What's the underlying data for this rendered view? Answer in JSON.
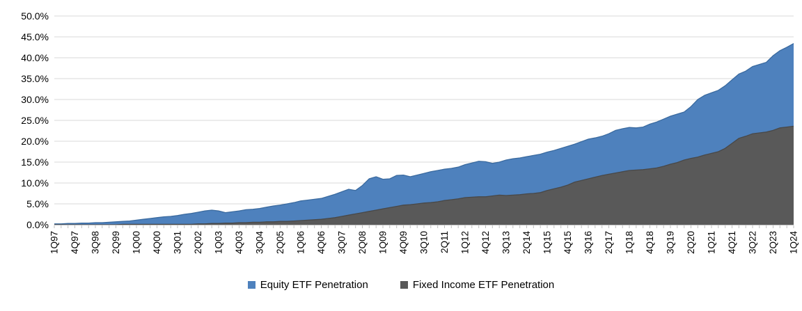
{
  "chart_data": {
    "type": "area",
    "title": "",
    "xlabel": "",
    "ylabel": "",
    "ylim": [
      0,
      50
    ],
    "y_tick_step": 5,
    "y_tick_labels": [
      "0.0%",
      "5.0%",
      "10.0%",
      "15.0%",
      "20.0%",
      "25.0%",
      "30.0%",
      "35.0%",
      "40.0%",
      "45.0%",
      "50.0%"
    ],
    "x_tick_interval": 3,
    "grid": true,
    "legend_position": "bottom",
    "overlapping_areas": true,
    "x": [
      "1Q97",
      "2Q97",
      "3Q97",
      "4Q97",
      "1Q98",
      "2Q98",
      "3Q98",
      "4Q98",
      "1Q99",
      "2Q99",
      "3Q99",
      "4Q99",
      "1Q00",
      "2Q00",
      "3Q00",
      "4Q00",
      "1Q01",
      "2Q01",
      "3Q01",
      "4Q01",
      "1Q02",
      "2Q02",
      "3Q02",
      "4Q02",
      "1Q03",
      "2Q03",
      "3Q03",
      "4Q03",
      "1Q04",
      "2Q04",
      "3Q04",
      "4Q04",
      "1Q05",
      "2Q05",
      "3Q05",
      "4Q05",
      "1Q06",
      "2Q06",
      "3Q06",
      "4Q06",
      "1Q07",
      "2Q07",
      "3Q07",
      "4Q07",
      "1Q08",
      "2Q08",
      "3Q08",
      "4Q08",
      "1Q09",
      "2Q09",
      "3Q09",
      "4Q09",
      "1Q10",
      "2Q10",
      "3Q10",
      "4Q10",
      "1Q11",
      "2Q11",
      "3Q11",
      "4Q11",
      "1Q12",
      "2Q12",
      "3Q12",
      "4Q12",
      "1Q13",
      "2Q13",
      "3Q13",
      "4Q13",
      "1Q14",
      "2Q14",
      "3Q14",
      "4Q14",
      "1Q15",
      "2Q15",
      "3Q15",
      "4Q15",
      "1Q16",
      "2Q16",
      "3Q16",
      "4Q16",
      "1Q17",
      "2Q17",
      "3Q17",
      "4Q17",
      "1Q18",
      "2Q18",
      "3Q18",
      "4Q18",
      "1Q19",
      "2Q19",
      "3Q19",
      "4Q19",
      "1Q20",
      "2Q20",
      "3Q20",
      "4Q20",
      "1Q21",
      "2Q21",
      "3Q21",
      "4Q21",
      "1Q22",
      "2Q22",
      "3Q22",
      "4Q22",
      "1Q23",
      "2Q23",
      "3Q23",
      "4Q23",
      "1Q24"
    ],
    "series": [
      {
        "id": "equity",
        "name": "Equity ETF Penetration",
        "color": "#4E81BD",
        "edge_color": "#3A6A9F",
        "values": [
          0.2,
          0.2,
          0.3,
          0.3,
          0.4,
          0.4,
          0.5,
          0.5,
          0.6,
          0.7,
          0.8,
          0.9,
          1.1,
          1.3,
          1.5,
          1.7,
          1.9,
          2.0,
          2.2,
          2.5,
          2.7,
          3.0,
          3.3,
          3.5,
          3.3,
          2.9,
          3.1,
          3.3,
          3.6,
          3.7,
          3.9,
          4.2,
          4.5,
          4.7,
          5.0,
          5.3,
          5.7,
          5.9,
          6.1,
          6.3,
          6.8,
          7.3,
          7.9,
          8.5,
          8.2,
          9.4,
          11.0,
          11.5,
          10.9,
          11.0,
          11.8,
          11.9,
          11.5,
          11.9,
          12.3,
          12.7,
          13.0,
          13.3,
          13.5,
          13.8,
          14.4,
          14.8,
          15.2,
          15.1,
          14.7,
          15.0,
          15.5,
          15.8,
          16.0,
          16.3,
          16.6,
          16.9,
          17.4,
          17.8,
          18.3,
          18.8,
          19.3,
          19.9,
          20.5,
          20.8,
          21.2,
          21.8,
          22.6,
          23.0,
          23.3,
          23.2,
          23.4,
          24.1,
          24.6,
          25.3,
          26.0,
          26.5,
          27.0,
          28.3,
          30.0,
          31.0,
          31.6,
          32.2,
          33.3,
          34.7,
          36.1,
          36.8,
          37.9,
          38.4,
          38.9,
          40.5,
          41.7,
          42.5,
          43.4
        ]
      },
      {
        "id": "fixed-income",
        "name": "Fixed Income ETF Penetration",
        "color": "#595959",
        "edge_color": "#484848",
        "values": [
          0.0,
          0.0,
          0.0,
          0.0,
          0.0,
          0.0,
          0.0,
          0.0,
          0.0,
          0.0,
          0.1,
          0.1,
          0.1,
          0.1,
          0.1,
          0.1,
          0.1,
          0.1,
          0.1,
          0.1,
          0.1,
          0.2,
          0.2,
          0.3,
          0.3,
          0.4,
          0.4,
          0.5,
          0.5,
          0.6,
          0.6,
          0.7,
          0.7,
          0.8,
          0.8,
          0.9,
          1.0,
          1.1,
          1.2,
          1.3,
          1.5,
          1.7,
          2.0,
          2.3,
          2.6,
          2.9,
          3.2,
          3.5,
          3.8,
          4.1,
          4.4,
          4.7,
          4.8,
          5.0,
          5.2,
          5.3,
          5.5,
          5.8,
          6.0,
          6.2,
          6.5,
          6.6,
          6.7,
          6.7,
          6.9,
          7.1,
          7.0,
          7.1,
          7.2,
          7.4,
          7.5,
          7.7,
          8.2,
          8.6,
          9.0,
          9.5,
          10.2,
          10.6,
          11.0,
          11.4,
          11.8,
          12.1,
          12.4,
          12.7,
          13.0,
          13.1,
          13.2,
          13.4,
          13.6,
          14.0,
          14.5,
          14.9,
          15.5,
          15.9,
          16.2,
          16.7,
          17.1,
          17.5,
          18.3,
          19.5,
          20.7,
          21.2,
          21.8,
          22.0,
          22.2,
          22.6,
          23.2,
          23.4,
          23.6
        ]
      }
    ]
  },
  "colors": {
    "gridline": "#D9D9D9",
    "axis": "#BFBFBF",
    "text": "#000000",
    "background": "#FFFFFF"
  }
}
